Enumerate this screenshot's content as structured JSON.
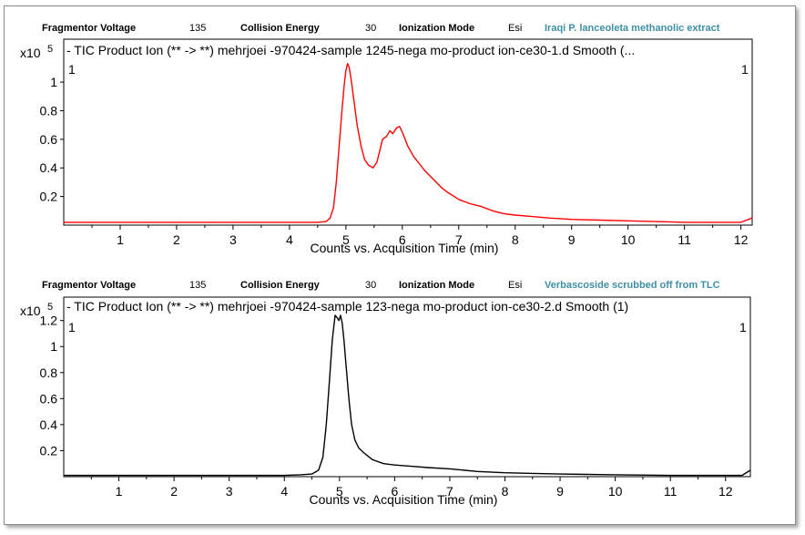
{
  "chart_data": [
    {
      "type": "line",
      "header": {
        "fragmentor_label": "Fragmentor Voltage",
        "fragmentor_value": "135",
        "collision_label": "Collision Energy",
        "collision_value": "30",
        "ionization_label": "Ionization Mode",
        "ionization_value": "Esi",
        "sample": "Iraqi P. lanceoleta methanolic extract",
        "sample_color": "#3f8fa6"
      },
      "title": "- TIC Product Ion (** -> **) mehrjoei -970424-sample 1245-nega mo-product ion-ce30-1.d  Smooth (...",
      "multiplier": "x10",
      "multiplier_exp": "5",
      "corner_left": "1",
      "corner_right": "1",
      "xlabel": "Counts vs. Acquisition Time (min)",
      "xlim": [
        0,
        12.2
      ],
      "ylim": [
        0,
        1.3
      ],
      "xticks": [
        "1",
        "2",
        "3",
        "4",
        "5",
        "6",
        "7",
        "8",
        "9",
        "10",
        "11",
        "12"
      ],
      "yticks": [
        "0.2",
        "0.4",
        "0.6",
        "0.8",
        "1"
      ],
      "series": [
        {
          "color": "#ff0000",
          "x": [
            0,
            0.5,
            1,
            1.5,
            2,
            2.5,
            3,
            3.5,
            4,
            4.3,
            4.5,
            4.65,
            4.72,
            4.78,
            4.83,
            4.88,
            4.93,
            4.97,
            5.0,
            5.03,
            5.06,
            5.1,
            5.15,
            5.2,
            5.27,
            5.33,
            5.4,
            5.48,
            5.55,
            5.6,
            5.65,
            5.72,
            5.78,
            5.83,
            5.9,
            5.95,
            6.0,
            6.05,
            6.1,
            6.2,
            6.3,
            6.4,
            6.5,
            6.6,
            6.7,
            6.8,
            7.0,
            7.2,
            7.4,
            7.6,
            7.8,
            8.0,
            8.3,
            8.6,
            9.0,
            9.5,
            10.0,
            10.5,
            11.0,
            11.5,
            12.0,
            12.2
          ],
          "y": [
            0.02,
            0.02,
            0.02,
            0.02,
            0.02,
            0.02,
            0.02,
            0.02,
            0.02,
            0.02,
            0.02,
            0.025,
            0.05,
            0.12,
            0.3,
            0.55,
            0.8,
            0.98,
            1.08,
            1.13,
            1.1,
            1.0,
            0.85,
            0.7,
            0.55,
            0.46,
            0.42,
            0.4,
            0.44,
            0.52,
            0.6,
            0.62,
            0.66,
            0.64,
            0.68,
            0.69,
            0.65,
            0.6,
            0.55,
            0.48,
            0.43,
            0.38,
            0.34,
            0.3,
            0.26,
            0.23,
            0.18,
            0.15,
            0.13,
            0.1,
            0.08,
            0.07,
            0.06,
            0.05,
            0.04,
            0.035,
            0.03,
            0.025,
            0.02,
            0.02,
            0.02,
            0.05
          ]
        }
      ]
    },
    {
      "type": "line",
      "header": {
        "fragmentor_label": "Fragmentor Voltage",
        "fragmentor_value": "135",
        "collision_label": "Collision Energy",
        "collision_value": "30",
        "ionization_label": "Ionization Mode",
        "ionization_value": "Esi",
        "sample": "Verbascoside scrubbed off from TLC",
        "sample_color": "#3f8fa6"
      },
      "title": "- TIC Product Ion (** -> **) mehrjoei -970424-sample 123-nega mo-product ion-ce30-2.d  Smooth (1)",
      "multiplier": "x10",
      "multiplier_exp": "5",
      "corner_left": "1",
      "corner_right": "1",
      "xlabel": "Counts vs. Acquisition Time (min)",
      "xlim": [
        0,
        12.45
      ],
      "ylim": [
        0,
        1.38
      ],
      "xticks": [
        "1",
        "2",
        "3",
        "4",
        "5",
        "6",
        "7",
        "8",
        "9",
        "10",
        "11",
        "12"
      ],
      "yticks": [
        "0.2",
        "0.4",
        "0.6",
        "0.8",
        "1",
        "1.2"
      ],
      "series": [
        {
          "color": "#000000",
          "x": [
            0,
            0.5,
            1,
            1.5,
            2,
            2.5,
            3,
            3.5,
            4,
            4.3,
            4.5,
            4.62,
            4.7,
            4.76,
            4.82,
            4.87,
            4.92,
            4.96,
            4.99,
            5.02,
            5.05,
            5.08,
            5.12,
            5.17,
            5.22,
            5.28,
            5.35,
            5.45,
            5.6,
            5.8,
            6.0,
            6.3,
            6.6,
            7.0,
            7.5,
            8.0,
            8.5,
            9.0,
            10.0,
            11.0,
            12.0,
            12.3,
            12.45
          ],
          "y": [
            0.01,
            0.01,
            0.01,
            0.01,
            0.01,
            0.01,
            0.01,
            0.01,
            0.01,
            0.015,
            0.02,
            0.05,
            0.15,
            0.4,
            0.75,
            1.05,
            1.24,
            1.22,
            1.2,
            1.24,
            1.18,
            1.05,
            0.85,
            0.6,
            0.4,
            0.28,
            0.22,
            0.18,
            0.13,
            0.1,
            0.09,
            0.08,
            0.07,
            0.06,
            0.04,
            0.03,
            0.025,
            0.02,
            0.015,
            0.01,
            0.01,
            0.01,
            0.05
          ]
        }
      ]
    }
  ]
}
